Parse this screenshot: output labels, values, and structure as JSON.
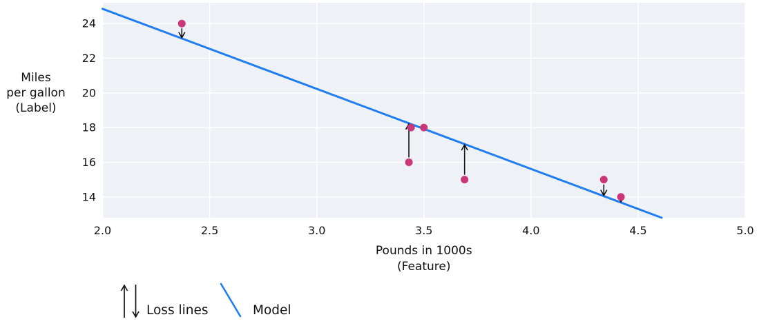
{
  "chart_data": {
    "type": "scatter",
    "title": "",
    "xlabel_lines": [
      "Pounds in 1000s",
      "(Feature)"
    ],
    "ylabel_lines": [
      "Miles",
      "per gallon",
      "(Label)"
    ],
    "xlim": [
      2.0,
      5.0
    ],
    "ylim": [
      12.8,
      25.2
    ],
    "xticks": [
      2.0,
      2.5,
      3.0,
      3.5,
      4.0,
      4.5,
      5.0
    ],
    "xtick_labels": [
      "2.0",
      "2.5",
      "3.0",
      "3.5",
      "4.0",
      "4.5",
      "5.0"
    ],
    "yticks": [
      14,
      16,
      18,
      20,
      22,
      24
    ],
    "ytick_labels": [
      "14",
      "16",
      "18",
      "20",
      "22",
      "24"
    ],
    "grid": true,
    "legend_position": "bottom-left",
    "plot_bg_color": "#eef1f6",
    "grid_color": "#ffffff",
    "point_color": "#ca3779",
    "model_color": "#1e7df0",
    "loss_color": "#111111",
    "points": [
      {
        "x": 2.37,
        "y": 24,
        "loss_line": true
      },
      {
        "x": 3.44,
        "y": 18,
        "loss_line": false
      },
      {
        "x": 3.5,
        "y": 18,
        "loss_line": false
      },
      {
        "x": 3.43,
        "y": 16,
        "loss_line": true
      },
      {
        "x": 3.69,
        "y": 15,
        "loss_line": true
      },
      {
        "x": 4.34,
        "y": 15,
        "loss_line": true
      },
      {
        "x": 4.42,
        "y": 14,
        "loss_line": true
      }
    ],
    "model_line": {
      "x1": 2.0,
      "y1": 24.85,
      "x2": 4.61,
      "y2": 12.8
    },
    "legend": [
      {
        "label": "Loss lines",
        "symbol": "arrows"
      },
      {
        "label": "Model",
        "symbol": "line"
      }
    ]
  }
}
